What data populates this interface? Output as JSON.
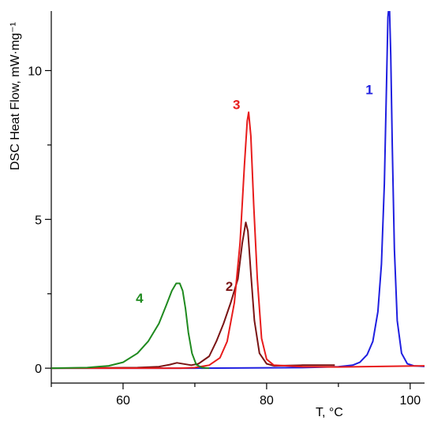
{
  "chart_data": {
    "type": "line",
    "title": "",
    "xlabel": "T, °C",
    "ylabel": "DSC Heat Flow, mW·mg⁻¹",
    "xlim": [
      50,
      102
    ],
    "ylim": [
      -0.5,
      12
    ],
    "x_ticks": [
      60,
      80,
      100
    ],
    "y_ticks": [
      0,
      5,
      10
    ],
    "grid": false,
    "legend": "none",
    "series": [
      {
        "name": "1",
        "color": "#1f1fe0",
        "x": [
          50,
          70,
          85,
          90,
          92,
          93,
          94,
          94.8,
          95.5,
          96,
          96.4,
          96.7,
          96.9,
          97.1,
          97.3,
          97.5,
          97.8,
          98.2,
          98.8,
          99.6,
          100.5,
          102
        ],
        "y": [
          0,
          0,
          0.02,
          0.05,
          0.1,
          0.2,
          0.45,
          0.9,
          1.9,
          3.5,
          6.2,
          9.5,
          11.8,
          12.3,
          10.5,
          7.5,
          4.0,
          1.6,
          0.5,
          0.15,
          0.08,
          0.06
        ]
      },
      {
        "name": "2",
        "color": "#7a1414",
        "x": [
          50,
          62,
          65,
          66.5,
          67.5,
          68.5,
          69.5,
          70.5,
          72,
          73,
          74,
          75,
          76,
          76.6,
          77.1,
          77.4,
          77.8,
          78.3,
          79,
          80,
          81,
          85,
          89.5
        ],
        "y": [
          0,
          0.02,
          0.05,
          0.12,
          0.18,
          0.14,
          0.1,
          0.15,
          0.4,
          0.9,
          1.5,
          2.2,
          3.0,
          4.2,
          4.9,
          4.6,
          3.2,
          1.6,
          0.5,
          0.15,
          0.08,
          0.1,
          0.1
        ]
      },
      {
        "name": "3",
        "color": "#e81c1c",
        "x": [
          50,
          68,
          70,
          72,
          73.5,
          74.5,
          75.5,
          76.3,
          76.9,
          77.3,
          77.5,
          77.8,
          78.2,
          78.7,
          79.3,
          80,
          81,
          85,
          90,
          102
        ],
        "y": [
          0,
          0,
          0.02,
          0.1,
          0.35,
          0.9,
          2.2,
          4.2,
          6.8,
          8.3,
          8.6,
          7.8,
          5.5,
          3.0,
          1.0,
          0.3,
          0.1,
          0.05,
          0.04,
          0.08
        ]
      },
      {
        "name": "4",
        "color": "#1f8a1f",
        "x": [
          50,
          55,
          58,
          60,
          62,
          63.5,
          65,
          66,
          66.8,
          67.4,
          67.9,
          68.3,
          68.7,
          69.1,
          69.6,
          70.2,
          71,
          72
        ],
        "y": [
          0,
          0.02,
          0.08,
          0.2,
          0.5,
          0.9,
          1.5,
          2.1,
          2.6,
          2.85,
          2.85,
          2.6,
          2.0,
          1.2,
          0.5,
          0.12,
          0.02,
          0
        ]
      }
    ],
    "annotations": [
      {
        "text": "1",
        "x": 94.3,
        "y": 9.2,
        "color": "#1f1fe0"
      },
      {
        "text": "2",
        "x": 74.8,
        "y": 2.6,
        "color": "#7a1414"
      },
      {
        "text": "3",
        "x": 75.8,
        "y": 8.7,
        "color": "#e81c1c"
      },
      {
        "text": "4",
        "x": 62.3,
        "y": 2.2,
        "color": "#1f8a1f"
      }
    ]
  }
}
